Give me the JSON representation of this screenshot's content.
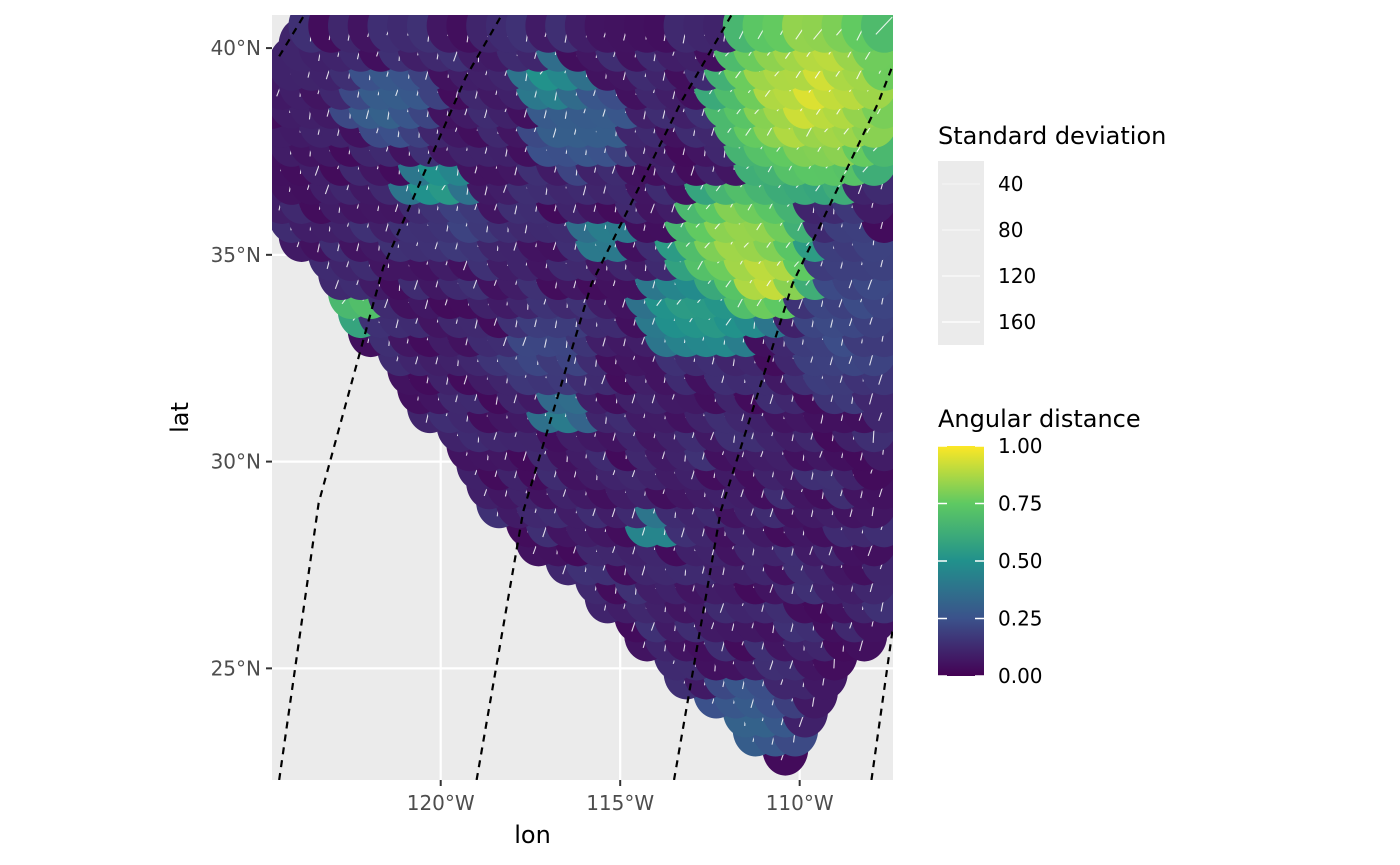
{
  "chart_data": {
    "type": "heatmap",
    "xlabel": "lon",
    "ylabel": "lat",
    "xlim": [
      -124.7,
      -107.4
    ],
    "ylim": [
      22.3,
      40.8
    ],
    "x_ticks": [
      {
        "value": -120,
        "label": "120°W"
      },
      {
        "value": -115,
        "label": "115°W"
      },
      {
        "value": -110,
        "label": "110°W"
      }
    ],
    "y_ticks": [
      {
        "value": 25,
        "label": "25°N"
      },
      {
        "value": 30,
        "label": "30°N"
      },
      {
        "value": 35,
        "label": "35°N"
      },
      {
        "value": 40,
        "label": "40°N"
      }
    ],
    "grid": true,
    "reference_lines": [
      {
        "style": "dashed",
        "points": [
          [
            -124.5,
            22.3
          ],
          [
            -123.4,
            29.0
          ],
          [
            -121.6,
            34.7
          ],
          [
            -119.3,
            39.3
          ],
          [
            -118.3,
            40.8
          ]
        ]
      },
      {
        "style": "dashed",
        "points": [
          [
            -119.0,
            22.3
          ],
          [
            -117.7,
            28.8
          ],
          [
            -115.8,
            34.3
          ],
          [
            -113.3,
            38.7
          ],
          [
            -111.9,
            40.8
          ]
        ]
      },
      {
        "style": "dashed",
        "points": [
          [
            -113.5,
            22.3
          ],
          [
            -112.2,
            28.8
          ],
          [
            -110.2,
            34.3
          ],
          [
            -107.8,
            38.7
          ],
          [
            -107.4,
            39.6
          ]
        ]
      },
      {
        "style": "dashed",
        "points": [
          [
            -108.0,
            22.3
          ],
          [
            -107.4,
            26.0
          ]
        ]
      },
      {
        "style": "dashed",
        "points": [
          [
            -124.5,
            39.8
          ],
          [
            -123.8,
            40.8
          ]
        ]
      }
    ],
    "domain": [
      [
        -124.7,
        39.4
      ],
      [
        -123.4,
        40.8
      ],
      [
        -107.4,
        40.8
      ],
      [
        -107.4,
        26.6
      ],
      [
        -109.5,
        24.4
      ],
      [
        -110.1,
        22.9
      ],
      [
        -111.0,
        23.2
      ],
      [
        -118.4,
        29.0
      ],
      [
        -124.7,
        36.4
      ]
    ],
    "hotspots": [
      {
        "lon": -109.4,
        "lat": 39.2,
        "value": 0.92,
        "rx": 3.0,
        "ry": 2.4
      },
      {
        "lon": -111.5,
        "lat": 35.8,
        "value": 0.85,
        "rx": 2.0,
        "ry": 1.5
      },
      {
        "lon": -110.8,
        "lat": 34.8,
        "value": 0.95,
        "rx": 1.3,
        "ry": 1.0
      },
      {
        "lon": -112.5,
        "lat": 34.0,
        "value": 0.55,
        "rx": 2.0,
        "ry": 1.2
      },
      {
        "lon": -120.0,
        "lat": 37.0,
        "value": 0.55,
        "rx": 0.9,
        "ry": 0.6
      },
      {
        "lon": -122.2,
        "lat": 34.0,
        "value": 0.72,
        "rx": 0.7,
        "ry": 0.5
      },
      {
        "lon": -116.8,
        "lat": 39.5,
        "value": 0.5,
        "rx": 1.0,
        "ry": 0.6
      },
      {
        "lon": -114.0,
        "lat": 28.7,
        "value": 0.48,
        "rx": 0.7,
        "ry": 0.5
      },
      {
        "lon": -115.3,
        "lat": 35.8,
        "value": 0.45,
        "rx": 0.8,
        "ry": 0.6
      },
      {
        "lon": -116.5,
        "lat": 31.5,
        "value": 0.42,
        "rx": 0.8,
        "ry": 0.6
      },
      {
        "lon": -121.3,
        "lat": 39.0,
        "value": 0.3,
        "rx": 1.3,
        "ry": 1.0
      },
      {
        "lon": -116.0,
        "lat": 38.5,
        "value": 0.32,
        "rx": 1.5,
        "ry": 1.2
      },
      {
        "lon": -111.5,
        "lat": 24.0,
        "value": 0.3,
        "rx": 1.6,
        "ry": 1.2
      },
      {
        "lon": -108.6,
        "lat": 34.0,
        "value": 0.22,
        "rx": 1.5,
        "ry": 2.5
      },
      {
        "lon": -117.0,
        "lat": 33.0,
        "value": 0.2,
        "rx": 1.5,
        "ry": 1.2
      },
      {
        "lon": -119.5,
        "lat": 36.0,
        "value": 0.18,
        "rx": 1.2,
        "ry": 1.0
      }
    ],
    "legends": [
      {
        "title": "Standard deviation",
        "kind": "size",
        "labels": [
          "40",
          "80",
          "120",
          "160"
        ]
      },
      {
        "title": "Angular distance",
        "kind": "colorbar",
        "range": [
          0,
          1
        ],
        "labels": [
          "1.00",
          "0.75",
          "0.50",
          "0.25",
          "0.00"
        ],
        "colors": [
          "#440154",
          "#3b528b",
          "#21918c",
          "#5ec962",
          "#fde725"
        ]
      }
    ],
    "colors": {
      "panel_background": "#ebebeb",
      "grid": "#ffffff",
      "segment": "#ffffff",
      "reference_line": "#000000"
    }
  }
}
